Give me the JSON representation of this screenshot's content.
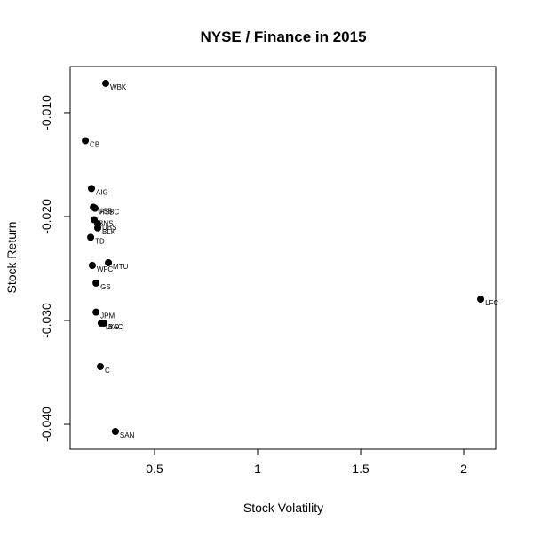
{
  "chart_data": {
    "type": "scatter",
    "title": "NYSE  /  Finance  in 2015",
    "x_label": "Stock Volatility",
    "y_label": "Stock Return",
    "xlim": [
      0.0905,
      2.155
    ],
    "ylim": [
      -0.04239,
      -0.00556
    ],
    "xticks": [
      0.5,
      1.0,
      1.5,
      2.0
    ],
    "yticks": [
      {
        "value": -0.01,
        "label": "-0.010"
      },
      {
        "value": -0.02,
        "label": "-0.020"
      },
      {
        "value": -0.03,
        "label": "-0.030"
      },
      {
        "value": -0.04,
        "label": "-0.040"
      }
    ],
    "color": "#000000",
    "labels": [
      "WBK",
      "CB",
      "AIG",
      "USB",
      "HSBC",
      "BNS",
      "UBS",
      "BLK",
      "TD",
      "MTU",
      "WFC",
      "GS",
      "JPM",
      "LYG",
      "BAC",
      "C",
      "SAN",
      "LFC"
    ],
    "x": [
      0.263,
      0.164,
      0.194,
      0.203,
      0.211,
      0.207,
      0.224,
      0.224,
      0.19,
      0.276,
      0.198,
      0.216,
      0.216,
      0.241,
      0.254,
      0.237,
      0.31,
      2.082
    ],
    "y": [
      -0.00718,
      -0.0127,
      -0.0173,
      -0.0191,
      -0.0192,
      -0.0203,
      -0.0207,
      -0.0211,
      -0.022,
      -0.02444,
      -0.0247,
      -0.0264,
      -0.0292,
      -0.03026,
      -0.03026,
      -0.03444,
      -0.04068,
      -0.02795
    ]
  }
}
